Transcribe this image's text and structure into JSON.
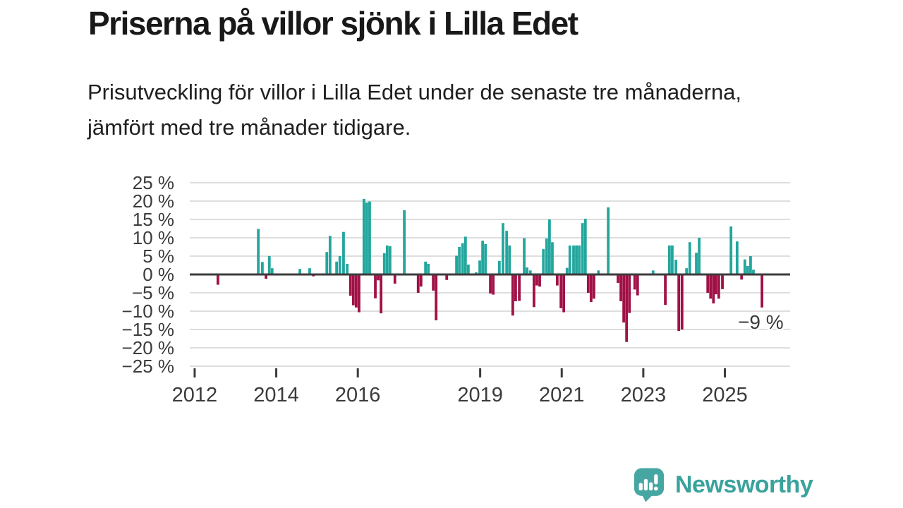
{
  "page": {
    "title": "Priserna på villor sjönk i Lilla Edet",
    "subtitle": "Prisutveckling för villor i Lilla Edet under de senaste tre månaderna, jämfört med tre månader tidigare."
  },
  "chart_data": {
    "type": "bar",
    "title": "Priserna på villor sjönk i Lilla Edet",
    "xlabel": "",
    "ylabel": "",
    "xlim": [
      2011.88,
      2026.6
    ],
    "ylim": [
      -25,
      25
    ],
    "grid": true,
    "y_tick_values": [
      25,
      20,
      15,
      10,
      5,
      0,
      -5,
      -10,
      -15,
      -20,
      -25
    ],
    "y_tick_labels": [
      "25 %",
      "20 %",
      "15 %",
      "10 %",
      "5 %",
      "0 %",
      "−5 %",
      "−10 %",
      "−15 %",
      "−20 %",
      "−25 %"
    ],
    "x_tick_values": [
      2012,
      2014,
      2016,
      2019,
      2021,
      2023,
      2025
    ],
    "x_tick_labels": [
      "2012",
      "2014",
      "2016",
      "2019",
      "2021",
      "2023",
      "2025"
    ],
    "annotation": {
      "text": "−9 %",
      "x": 2025.88,
      "y": -12.9
    },
    "colors": {
      "positive": "#22a69d",
      "negative": "#a01146",
      "gridline": "#dedede",
      "axis": "#3c3c3c",
      "label": "#3b3b3b"
    },
    "points": [
      [
        2012.57,
        -2.8
      ],
      [
        2013.56,
        12.4
      ],
      [
        2013.66,
        3.4
      ],
      [
        2013.75,
        -1.2
      ],
      [
        2013.83,
        5.0
      ],
      [
        2013.9,
        1.7
      ],
      [
        2014.58,
        1.5
      ],
      [
        2014.82,
        1.7
      ],
      [
        2014.91,
        -0.5
      ],
      [
        2015.24,
        6.1
      ],
      [
        2015.32,
        10.5
      ],
      [
        2015.48,
        3.5
      ],
      [
        2015.56,
        5.0
      ],
      [
        2015.65,
        11.6
      ],
      [
        2015.74,
        2.9
      ],
      [
        2015.82,
        -5.8
      ],
      [
        2015.89,
        -8.4
      ],
      [
        2015.96,
        -9.0
      ],
      [
        2016.03,
        -10.3
      ],
      [
        2016.15,
        20.6
      ],
      [
        2016.22,
        19.6
      ],
      [
        2016.29,
        19.9
      ],
      [
        2016.43,
        -6.5
      ],
      [
        2016.5,
        -1.6
      ],
      [
        2016.57,
        -10.6
      ],
      [
        2016.65,
        5.8
      ],
      [
        2016.72,
        7.9
      ],
      [
        2016.79,
        7.7
      ],
      [
        2016.91,
        -2.5
      ],
      [
        2017.14,
        17.5
      ],
      [
        2017.48,
        -5.0
      ],
      [
        2017.55,
        -3.3
      ],
      [
        2017.66,
        3.5
      ],
      [
        2017.73,
        2.9
      ],
      [
        2017.85,
        -4.4
      ],
      [
        2017.92,
        -12.5
      ],
      [
        2018.18,
        -1.5
      ],
      [
        2018.42,
        5.1
      ],
      [
        2018.49,
        7.5
      ],
      [
        2018.57,
        8.5
      ],
      [
        2018.64,
        10.3
      ],
      [
        2018.71,
        2.7
      ],
      [
        2018.9,
        0.6
      ],
      [
        2018.99,
        3.8
      ],
      [
        2019.06,
        9.2
      ],
      [
        2019.13,
        8.3
      ],
      [
        2019.25,
        -5.2
      ],
      [
        2019.32,
        -5.5
      ],
      [
        2019.47,
        3.7
      ],
      [
        2019.56,
        14.0
      ],
      [
        2019.65,
        11.9
      ],
      [
        2019.72,
        7.9
      ],
      [
        2019.8,
        -11.2
      ],
      [
        2019.87,
        -7.3
      ],
      [
        2019.96,
        -7.2
      ],
      [
        2020.08,
        9.9
      ],
      [
        2020.15,
        1.9
      ],
      [
        2020.23,
        1.1
      ],
      [
        2020.32,
        -8.9
      ],
      [
        2020.39,
        -3.0
      ],
      [
        2020.46,
        -3.3
      ],
      [
        2020.55,
        6.9
      ],
      [
        2020.63,
        9.8
      ],
      [
        2020.7,
        15.0
      ],
      [
        2020.77,
        8.8
      ],
      [
        2020.89,
        -3.0
      ],
      [
        2020.98,
        -9.2
      ],
      [
        2021.05,
        -10.3
      ],
      [
        2021.13,
        1.8
      ],
      [
        2021.2,
        7.9
      ],
      [
        2021.29,
        7.9
      ],
      [
        2021.36,
        7.9
      ],
      [
        2021.43,
        7.9
      ],
      [
        2021.51,
        14.0
      ],
      [
        2021.58,
        15.2
      ],
      [
        2021.65,
        -5.0
      ],
      [
        2021.72,
        -7.5
      ],
      [
        2021.79,
        -6.6
      ],
      [
        2021.9,
        1.1
      ],
      [
        2022.14,
        18.3
      ],
      [
        2022.38,
        -2.3
      ],
      [
        2022.45,
        -7.3
      ],
      [
        2022.52,
        -13.1
      ],
      [
        2022.59,
        -18.4
      ],
      [
        2022.66,
        -10.5
      ],
      [
        2022.79,
        -4.1
      ],
      [
        2022.86,
        -5.7
      ],
      [
        2023.24,
        1.1
      ],
      [
        2023.54,
        -8.3
      ],
      [
        2023.64,
        7.9
      ],
      [
        2023.71,
        7.9
      ],
      [
        2023.8,
        4.0
      ],
      [
        2023.87,
        -15.4
      ],
      [
        2023.95,
        -15.0
      ],
      [
        2024.06,
        1.7
      ],
      [
        2024.14,
        8.8
      ],
      [
        2024.3,
        5.9
      ],
      [
        2024.37,
        10.0
      ],
      [
        2024.58,
        -5.0
      ],
      [
        2024.65,
        -6.6
      ],
      [
        2024.72,
        -7.9
      ],
      [
        2024.78,
        -5.4
      ],
      [
        2024.85,
        -6.6
      ],
      [
        2024.94,
        -4.0
      ],
      [
        2025.15,
        13.1
      ],
      [
        2025.3,
        9.0
      ],
      [
        2025.41,
        -1.4
      ],
      [
        2025.49,
        4.1
      ],
      [
        2025.56,
        2.3
      ],
      [
        2025.63,
        5.0
      ],
      [
        2025.7,
        1.3
      ],
      [
        2025.91,
        -9.0
      ]
    ]
  },
  "footer": {
    "brand": "Newsworthy"
  }
}
